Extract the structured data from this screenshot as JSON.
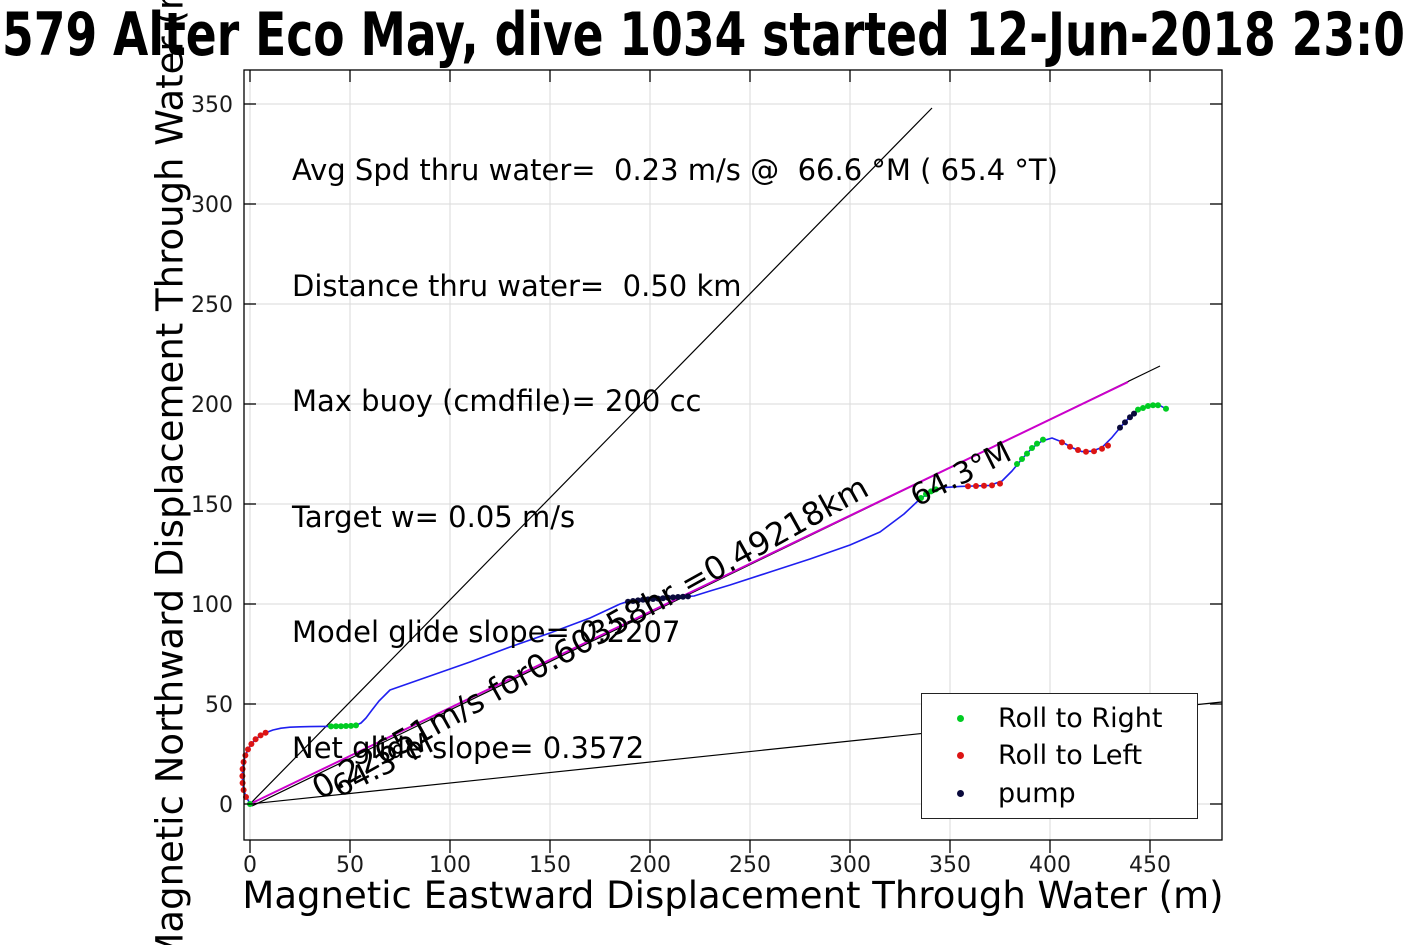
{
  "header": {
    "title": "579 Alter Eco May, dive 1034 started 12-Jun-2018 23:0"
  },
  "axes": {
    "xlabel": "Magnetic Eastward Displacement Through Water (m)",
    "ylabel": "Magnetic Northward Displacement Through Water (m)"
  },
  "annotations": {
    "lines": [
      "Avg Spd thru water=  0.23 m/s @  66.6 °M ( 65.4 °T)",
      "Distance thru water=  0.50 km",
      "Max buoy (cmdfile)= 200 cc",
      "Target w= 0.05 m/s",
      "Model glide slope= 0.2207",
      "Net glide slope= 0.3572"
    ],
    "speed_text": "0.22651m/s for0.60358hr =0.49218km",
    "bearing_text": "64.3°M"
  },
  "legend": {
    "items": [
      {
        "label": "Roll to Right",
        "color": "#00cc22"
      },
      {
        "label": "Roll to Left",
        "color": "#dc1414"
      },
      {
        "label": "pump",
        "color": "#0a0a3c"
      }
    ]
  },
  "colors": {
    "trajectory": "#1f1ff0",
    "course": "#cc00cc",
    "reference": "#000000",
    "grid": "#dadada",
    "spine": "#000000"
  },
  "chart_data": {
    "type": "line",
    "title": "579 Alter Eco May, dive 1034 started 12-Jun-2018 23:0",
    "xlabel": "Magnetic Eastward Displacement Through Water (m)",
    "ylabel": "Magnetic Northward Displacement Through Water (m)",
    "xlim": [
      -3,
      486
    ],
    "ylim": [
      -18,
      367
    ],
    "x_ticks": [
      0,
      50,
      100,
      150,
      200,
      250,
      300,
      350,
      400,
      450
    ],
    "y_ticks": [
      0,
      50,
      100,
      150,
      200,
      250,
      300,
      350
    ],
    "grid": true,
    "legend_position": "lower right",
    "series": [
      {
        "name": "steep-reference-line",
        "type": "line",
        "color": "#000000",
        "w": 1.2,
        "points": [
          [
            0,
            0
          ],
          [
            341,
            348
          ]
        ]
      },
      {
        "name": "shallow-reference-line",
        "type": "line",
        "color": "#000000",
        "w": 1.2,
        "points": [
          [
            0,
            0
          ],
          [
            486,
            51
          ]
        ]
      },
      {
        "name": "course-fit-line",
        "type": "line",
        "color": "#000000",
        "w": 1.2,
        "points": [
          [
            1,
            -1
          ],
          [
            455,
            219
          ]
        ]
      },
      {
        "name": "course-dead-reckoning-line",
        "type": "line",
        "color": "#cc00cc",
        "w": 2,
        "points": [
          [
            0,
            0
          ],
          [
            439,
            211
          ]
        ]
      },
      {
        "name": "trajectory-through-water",
        "type": "line",
        "color": "#1f1ff0",
        "w": 1.6,
        "points": [
          [
            0,
            0
          ],
          [
            -1,
            2
          ],
          [
            -2.3,
            4.5
          ],
          [
            -3.2,
            7.5
          ],
          [
            -3.7,
            10.5
          ],
          [
            -3.8,
            14
          ],
          [
            -3.7,
            17.5
          ],
          [
            -3.2,
            21
          ],
          [
            -2.3,
            24.3
          ],
          [
            -1,
            27.3
          ],
          [
            0.7,
            30
          ],
          [
            2.8,
            32.4
          ],
          [
            5.3,
            34.3
          ],
          [
            8,
            35.7
          ],
          [
            11.5,
            37
          ],
          [
            15.5,
            37.9
          ],
          [
            20,
            38.4
          ],
          [
            25,
            38.6
          ],
          [
            30,
            38.7
          ],
          [
            35,
            38.8
          ],
          [
            40,
            38.8
          ],
          [
            45,
            38.9
          ],
          [
            50,
            39
          ],
          [
            53,
            39.3
          ],
          [
            55.5,
            40.5
          ],
          [
            58,
            43
          ],
          [
            61,
            47
          ],
          [
            64.5,
            51.5
          ],
          [
            68,
            55
          ],
          [
            70,
            57
          ],
          [
            80,
            60.5
          ],
          [
            90,
            64
          ],
          [
            110,
            71
          ],
          [
            130,
            78.5
          ],
          [
            150,
            85.5
          ],
          [
            170,
            93
          ],
          [
            185,
            100
          ],
          [
            188,
            101
          ],
          [
            195,
            101.9
          ],
          [
            205,
            102.7
          ],
          [
            215,
            103.4
          ],
          [
            219,
            103.8
          ],
          [
            222,
            104
          ],
          [
            230,
            106.5
          ],
          [
            240,
            109.5
          ],
          [
            260,
            116
          ],
          [
            280,
            122.5
          ],
          [
            300,
            129.5
          ],
          [
            315,
            136
          ],
          [
            327,
            145
          ],
          [
            335,
            152.5
          ],
          [
            341,
            156.5
          ],
          [
            347,
            158.2
          ],
          [
            355,
            158.8
          ],
          [
            362,
            159
          ],
          [
            370,
            159.3
          ],
          [
            376,
            161.5
          ],
          [
            381,
            166.5
          ],
          [
            386,
            172.5
          ],
          [
            391,
            178
          ],
          [
            396,
            181.5
          ],
          [
            401,
            183
          ],
          [
            406,
            181
          ],
          [
            411,
            178.2
          ],
          [
            416,
            176.2
          ],
          [
            421,
            176.4
          ],
          [
            426,
            178.3
          ],
          [
            431,
            183.3
          ],
          [
            436,
            189.3
          ],
          [
            441,
            194.8
          ],
          [
            446,
            197.8
          ],
          [
            451,
            199.4
          ],
          [
            455,
            199.2
          ],
          [
            458,
            197.6
          ]
        ]
      },
      {
        "name": "Roll to Right",
        "type": "scatter",
        "color": "#00cc22",
        "r": 3,
        "points": [
          [
            0,
            0
          ],
          [
            40.5,
            38.8
          ],
          [
            43,
            38.85
          ],
          [
            45.5,
            38.9
          ],
          [
            48,
            39
          ],
          [
            50.5,
            39.05
          ],
          [
            53,
            39.3
          ],
          [
            335.5,
            153
          ],
          [
            338,
            155
          ],
          [
            340.5,
            156.3
          ],
          [
            343,
            157.3
          ],
          [
            383.5,
            170
          ],
          [
            386,
            172.5
          ],
          [
            388.5,
            175.2
          ],
          [
            391,
            178
          ],
          [
            393.5,
            180.2
          ],
          [
            396.5,
            182.2
          ],
          [
            444,
            197.2
          ],
          [
            446.5,
            198
          ],
          [
            449,
            199
          ],
          [
            451.5,
            199.4
          ],
          [
            454,
            199.4
          ],
          [
            458,
            197.6
          ]
        ]
      },
      {
        "name": "Roll to Left",
        "type": "scatter",
        "color": "#dc1414",
        "r": 3,
        "points": [
          [
            -2,
            3.5
          ],
          [
            -3.2,
            7
          ],
          [
            -3.7,
            10.5
          ],
          [
            -3.8,
            14
          ],
          [
            -3.7,
            17.5
          ],
          [
            -3.2,
            21
          ],
          [
            -2.3,
            24.3
          ],
          [
            -1,
            27.3
          ],
          [
            0.7,
            30
          ],
          [
            2.8,
            32.4
          ],
          [
            5.3,
            34.3
          ],
          [
            7.8,
            35.6
          ],
          [
            359,
            158.9
          ],
          [
            363,
            159
          ],
          [
            367,
            159.1
          ],
          [
            371,
            159.3
          ],
          [
            375,
            160.2
          ],
          [
            406,
            180.8
          ],
          [
            410,
            178.6
          ],
          [
            414,
            177
          ],
          [
            418,
            176.1
          ],
          [
            422,
            176.4
          ],
          [
            426,
            177.6
          ],
          [
            429,
            179.2
          ]
        ]
      },
      {
        "name": "pump",
        "type": "scatter",
        "color": "#0a0a3c",
        "r": 3,
        "points": [
          [
            189,
            101.1
          ],
          [
            191.5,
            101.5
          ],
          [
            194,
            101.8
          ],
          [
            196.5,
            102.1
          ],
          [
            199,
            102.3
          ],
          [
            201.5,
            102.5
          ],
          [
            204,
            102.7
          ],
          [
            206.5,
            102.9
          ],
          [
            209,
            103.1
          ],
          [
            211.5,
            103.3
          ],
          [
            214,
            103.5
          ],
          [
            216.5,
            103.6
          ],
          [
            219,
            103.8
          ],
          [
            435,
            188.2
          ],
          [
            437.5,
            190.8
          ],
          [
            440,
            193.4
          ],
          [
            442,
            195.2
          ]
        ]
      }
    ],
    "annotations": [
      {
        "text": "0.22651m/s for0.60358hr =0.49218km",
        "along_course_line": true
      },
      {
        "text": "64.3°M",
        "position": "near origin, below course line"
      },
      {
        "text": "64.3°M",
        "position": "near course line end, below line"
      }
    ]
  }
}
